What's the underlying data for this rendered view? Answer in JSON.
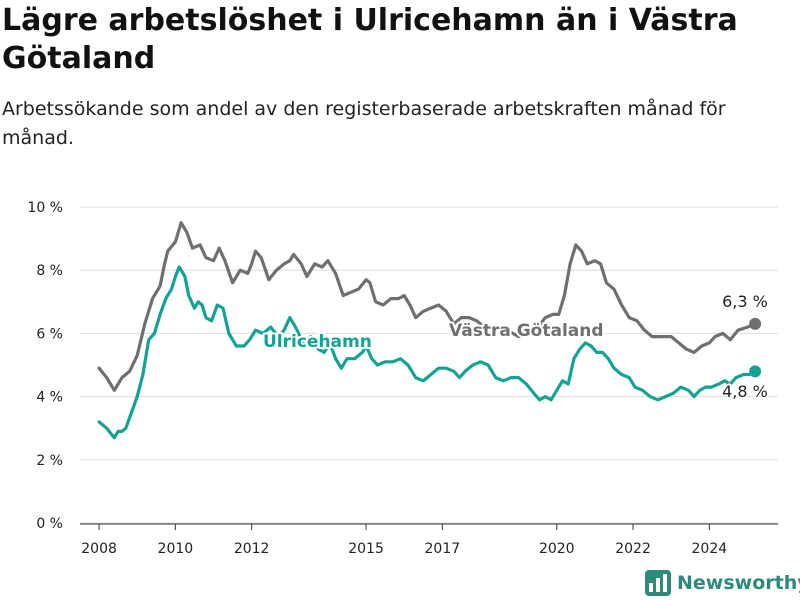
{
  "title": "Lägre arbetslöshet i Ulricehamn än i Västra Götaland",
  "subtitle": "Arbetssökande som andel av den registerbaserade arbetskraften månad för månad.",
  "logo_text": "Newsworthy",
  "colors": {
    "ulricehamn": "#14a292",
    "vastra_gotaland": "#6f6f72",
    "grid": "#dddddd",
    "axis": "#333333"
  },
  "chart_data": {
    "type": "line",
    "ylim": [
      0,
      10
    ],
    "yticks": [
      0,
      2,
      4,
      6,
      8,
      10
    ],
    "ytick_labels": [
      "0 %",
      "2 %",
      "4 %",
      "6 %",
      "8 %",
      "10 %"
    ],
    "xlim": [
      2007.5,
      2025.8
    ],
    "xticks": [
      2008,
      2010,
      2012,
      2015,
      2017,
      2020,
      2022,
      2024
    ],
    "xtick_labels": [
      "2008",
      "2010",
      "2012",
      "2015",
      "2017",
      "2020",
      "2022",
      "2024"
    ],
    "grid": true,
    "series": [
      {
        "name": "Västra Götaland",
        "color": "#6f6f72",
        "end_label": "6,3 %",
        "points": [
          [
            2008.0,
            4.9
          ],
          [
            2008.2,
            4.6
          ],
          [
            2008.4,
            4.2
          ],
          [
            2008.6,
            4.6
          ],
          [
            2008.8,
            4.8
          ],
          [
            2009.0,
            5.3
          ],
          [
            2009.2,
            6.3
          ],
          [
            2009.4,
            7.1
          ],
          [
            2009.6,
            7.5
          ],
          [
            2009.7,
            8.1
          ],
          [
            2009.8,
            8.6
          ],
          [
            2010.0,
            8.9
          ],
          [
            2010.15,
            9.5
          ],
          [
            2010.3,
            9.2
          ],
          [
            2010.45,
            8.7
          ],
          [
            2010.65,
            8.8
          ],
          [
            2010.8,
            8.4
          ],
          [
            2011.0,
            8.3
          ],
          [
            2011.15,
            8.7
          ],
          [
            2011.3,
            8.3
          ],
          [
            2011.5,
            7.6
          ],
          [
            2011.7,
            8.0
          ],
          [
            2011.9,
            7.9
          ],
          [
            2012.0,
            8.2
          ],
          [
            2012.1,
            8.6
          ],
          [
            2012.25,
            8.4
          ],
          [
            2012.45,
            7.7
          ],
          [
            2012.65,
            8.0
          ],
          [
            2012.85,
            8.2
          ],
          [
            2013.0,
            8.3
          ],
          [
            2013.1,
            8.5
          ],
          [
            2013.3,
            8.2
          ],
          [
            2013.45,
            7.8
          ],
          [
            2013.65,
            8.2
          ],
          [
            2013.85,
            8.1
          ],
          [
            2014.0,
            8.3
          ],
          [
            2014.2,
            7.9
          ],
          [
            2014.4,
            7.2
          ],
          [
            2014.6,
            7.3
          ],
          [
            2014.8,
            7.4
          ],
          [
            2015.0,
            7.7
          ],
          [
            2015.1,
            7.6
          ],
          [
            2015.25,
            7.0
          ],
          [
            2015.45,
            6.9
          ],
          [
            2015.65,
            7.1
          ],
          [
            2015.85,
            7.1
          ],
          [
            2016.0,
            7.2
          ],
          [
            2016.15,
            6.9
          ],
          [
            2016.3,
            6.5
          ],
          [
            2016.5,
            6.7
          ],
          [
            2016.7,
            6.8
          ],
          [
            2016.9,
            6.9
          ],
          [
            2017.1,
            6.7
          ],
          [
            2017.3,
            6.3
          ],
          [
            2017.5,
            6.5
          ],
          [
            2017.7,
            6.5
          ],
          [
            2017.9,
            6.4
          ],
          [
            2018.1,
            6.2
          ],
          [
            2018.4,
            6.2
          ],
          [
            2018.7,
            6.1
          ],
          [
            2019.0,
            5.9
          ],
          [
            2019.25,
            6.0
          ],
          [
            2019.5,
            6.2
          ],
          [
            2019.7,
            6.5
          ],
          [
            2019.9,
            6.6
          ],
          [
            2020.05,
            6.6
          ],
          [
            2020.2,
            7.2
          ],
          [
            2020.35,
            8.2
          ],
          [
            2020.5,
            8.8
          ],
          [
            2020.65,
            8.6
          ],
          [
            2020.8,
            8.2
          ],
          [
            2021.0,
            8.3
          ],
          [
            2021.15,
            8.2
          ],
          [
            2021.3,
            7.6
          ],
          [
            2021.5,
            7.4
          ],
          [
            2021.7,
            6.9
          ],
          [
            2021.9,
            6.5
          ],
          [
            2022.1,
            6.4
          ],
          [
            2022.3,
            6.1
          ],
          [
            2022.5,
            5.9
          ],
          [
            2022.8,
            5.9
          ],
          [
            2023.0,
            5.9
          ],
          [
            2023.2,
            5.7
          ],
          [
            2023.4,
            5.5
          ],
          [
            2023.6,
            5.4
          ],
          [
            2023.8,
            5.6
          ],
          [
            2024.0,
            5.7
          ],
          [
            2024.15,
            5.9
          ],
          [
            2024.35,
            6.0
          ],
          [
            2024.55,
            5.8
          ],
          [
            2024.75,
            6.1
          ],
          [
            2025.0,
            6.2
          ],
          [
            2025.2,
            6.3
          ]
        ]
      },
      {
        "name": "Ulricehamn",
        "color": "#14a292",
        "end_label": "4,8 %",
        "points": [
          [
            2008.0,
            3.2
          ],
          [
            2008.2,
            3.0
          ],
          [
            2008.4,
            2.7
          ],
          [
            2008.5,
            2.9
          ],
          [
            2008.6,
            2.9
          ],
          [
            2008.7,
            3.0
          ],
          [
            2008.85,
            3.5
          ],
          [
            2009.0,
            4.0
          ],
          [
            2009.15,
            4.7
          ],
          [
            2009.3,
            5.8
          ],
          [
            2009.45,
            6.0
          ],
          [
            2009.6,
            6.6
          ],
          [
            2009.75,
            7.1
          ],
          [
            2009.9,
            7.4
          ],
          [
            2010.0,
            7.8
          ],
          [
            2010.1,
            8.1
          ],
          [
            2010.25,
            7.8
          ],
          [
            2010.35,
            7.2
          ],
          [
            2010.5,
            6.8
          ],
          [
            2010.6,
            7.0
          ],
          [
            2010.7,
            6.9
          ],
          [
            2010.8,
            6.5
          ],
          [
            2010.95,
            6.4
          ],
          [
            2011.1,
            6.9
          ],
          [
            2011.25,
            6.8
          ],
          [
            2011.4,
            6.0
          ],
          [
            2011.6,
            5.6
          ],
          [
            2011.8,
            5.6
          ],
          [
            2011.95,
            5.8
          ],
          [
            2012.1,
            6.1
          ],
          [
            2012.3,
            6.0
          ],
          [
            2012.5,
            6.2
          ],
          [
            2012.7,
            5.9
          ],
          [
            2012.85,
            6.1
          ],
          [
            2013.0,
            6.5
          ],
          [
            2013.15,
            6.2
          ],
          [
            2013.35,
            5.7
          ],
          [
            2013.55,
            5.9
          ],
          [
            2013.75,
            5.5
          ],
          [
            2013.9,
            5.4
          ],
          [
            2014.05,
            5.7
          ],
          [
            2014.2,
            5.2
          ],
          [
            2014.35,
            4.9
          ],
          [
            2014.5,
            5.2
          ],
          [
            2014.7,
            5.2
          ],
          [
            2014.9,
            5.4
          ],
          [
            2015.0,
            5.6
          ],
          [
            2015.15,
            5.2
          ],
          [
            2015.3,
            5.0
          ],
          [
            2015.5,
            5.1
          ],
          [
            2015.7,
            5.1
          ],
          [
            2015.9,
            5.2
          ],
          [
            2016.1,
            5.0
          ],
          [
            2016.3,
            4.6
          ],
          [
            2016.5,
            4.5
          ],
          [
            2016.7,
            4.7
          ],
          [
            2016.9,
            4.9
          ],
          [
            2017.1,
            4.9
          ],
          [
            2017.3,
            4.8
          ],
          [
            2017.45,
            4.6
          ],
          [
            2017.6,
            4.8
          ],
          [
            2017.8,
            5.0
          ],
          [
            2018.0,
            5.1
          ],
          [
            2018.2,
            5.0
          ],
          [
            2018.4,
            4.6
          ],
          [
            2018.6,
            4.5
          ],
          [
            2018.8,
            4.6
          ],
          [
            2019.0,
            4.6
          ],
          [
            2019.2,
            4.4
          ],
          [
            2019.4,
            4.1
          ],
          [
            2019.55,
            3.9
          ],
          [
            2019.7,
            4.0
          ],
          [
            2019.85,
            3.9
          ],
          [
            2020.0,
            4.2
          ],
          [
            2020.15,
            4.5
          ],
          [
            2020.3,
            4.4
          ],
          [
            2020.45,
            5.2
          ],
          [
            2020.6,
            5.5
          ],
          [
            2020.75,
            5.7
          ],
          [
            2020.9,
            5.6
          ],
          [
            2021.05,
            5.4
          ],
          [
            2021.2,
            5.4
          ],
          [
            2021.35,
            5.2
          ],
          [
            2021.5,
            4.9
          ],
          [
            2021.7,
            4.7
          ],
          [
            2021.9,
            4.6
          ],
          [
            2022.05,
            4.3
          ],
          [
            2022.25,
            4.2
          ],
          [
            2022.45,
            4.0
          ],
          [
            2022.65,
            3.9
          ],
          [
            2022.85,
            4.0
          ],
          [
            2023.05,
            4.1
          ],
          [
            2023.25,
            4.3
          ],
          [
            2023.45,
            4.2
          ],
          [
            2023.6,
            4.0
          ],
          [
            2023.75,
            4.2
          ],
          [
            2023.9,
            4.3
          ],
          [
            2024.05,
            4.3
          ],
          [
            2024.25,
            4.4
          ],
          [
            2024.4,
            4.5
          ],
          [
            2024.55,
            4.4
          ],
          [
            2024.7,
            4.6
          ],
          [
            2024.9,
            4.7
          ],
          [
            2025.05,
            4.7
          ],
          [
            2025.2,
            4.8
          ]
        ]
      }
    ]
  }
}
